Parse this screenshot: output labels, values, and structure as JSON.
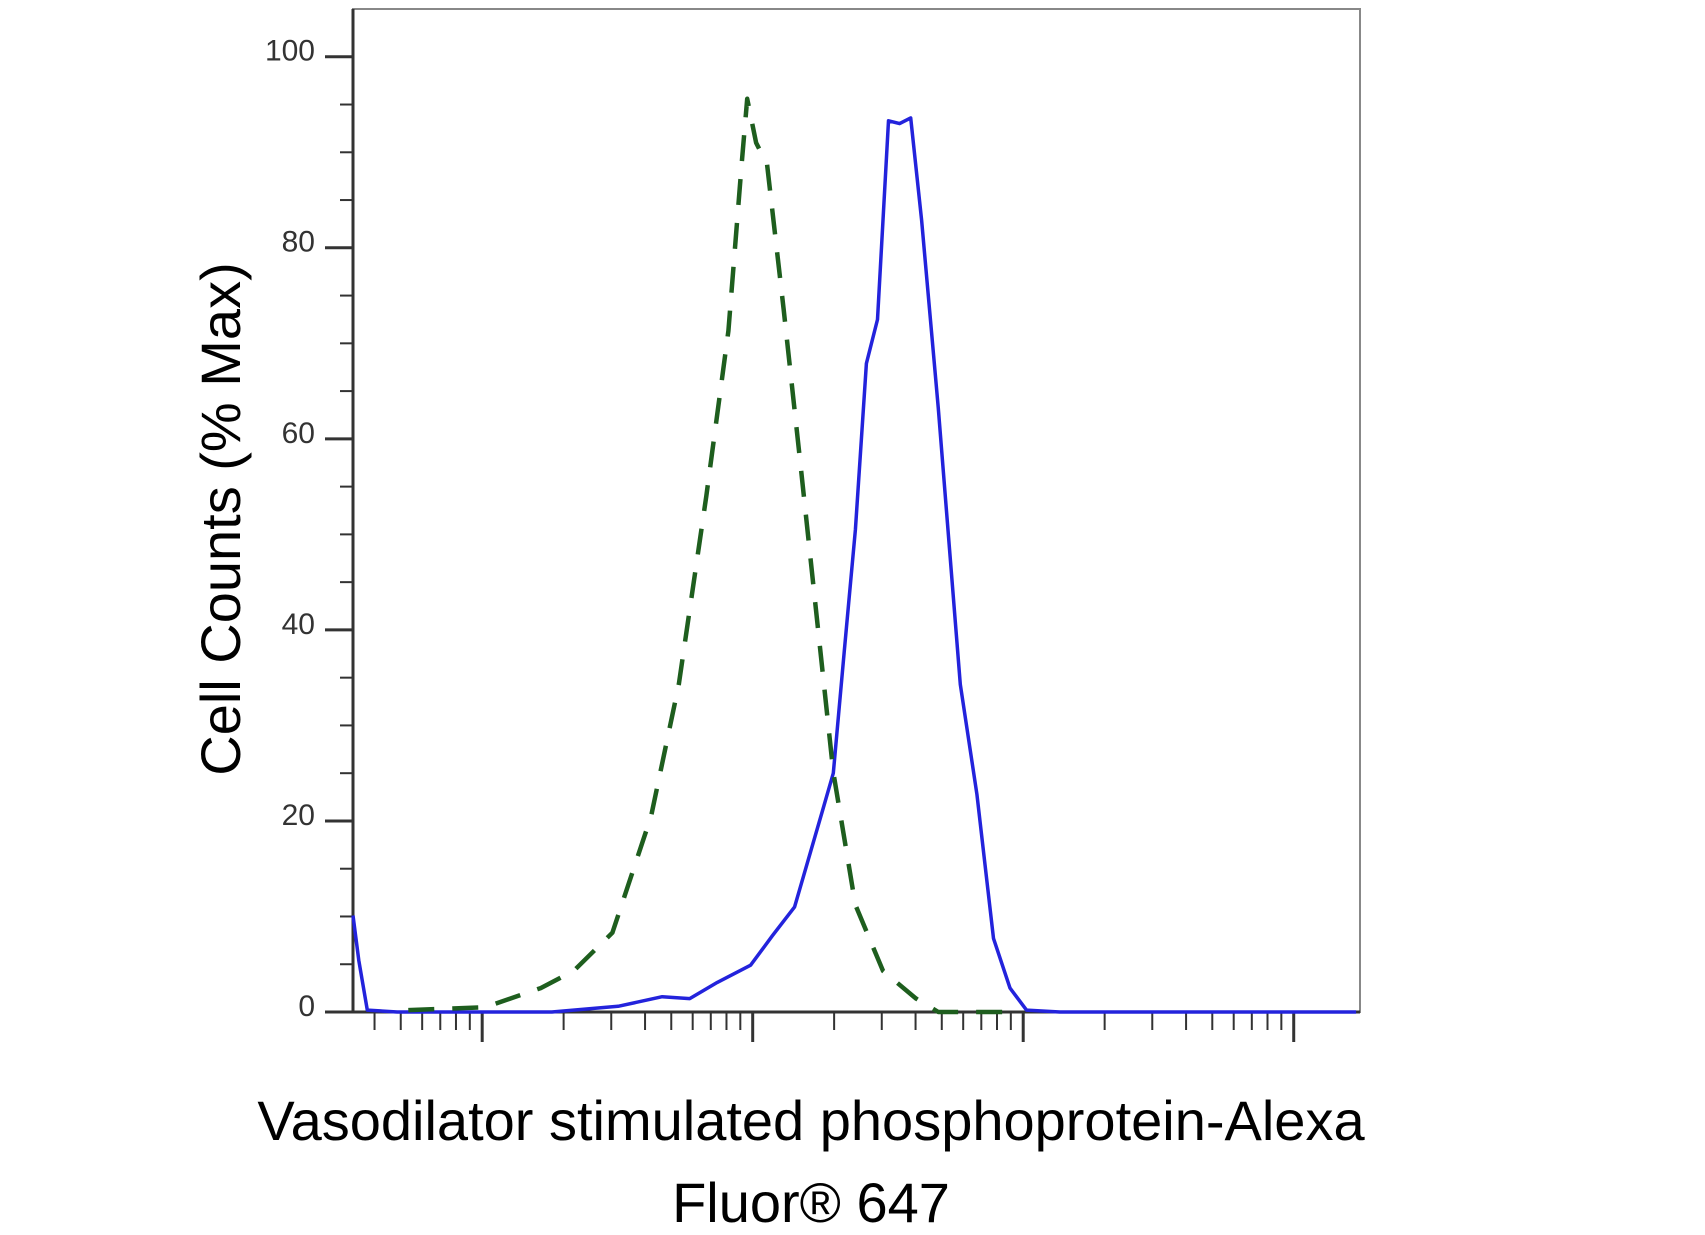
{
  "chart_data": {
    "type": "line",
    "ylabel": "Cell Counts (% Max)",
    "xlabel": [
      "Vasodilator stimulated phosphoprotein-Alexa",
      "Fluor® 647"
    ],
    "xscale": "log",
    "xlim": [
      33.3,
      175800
    ],
    "xticks": [
      100,
      1000,
      10000,
      100000
    ],
    "xminorticks": [
      40,
      50,
      60,
      70,
      80,
      90,
      200,
      300,
      400,
      500,
      600,
      700,
      800,
      900,
      2000,
      3000,
      4000,
      5000,
      6000,
      7000,
      8000,
      9000,
      20000,
      30000,
      40000,
      50000,
      60000,
      70000,
      80000,
      90000
    ],
    "ylim": [
      0,
      105
    ],
    "yticks": [
      0,
      20,
      40,
      60,
      80,
      100
    ],
    "yminorticks": [
      5,
      10,
      15,
      25,
      30,
      35,
      45,
      50,
      55,
      65,
      70,
      75,
      85,
      90,
      95
    ],
    "series": [
      {
        "color": "#2323dc",
        "style": "solid",
        "x": [
          33.3,
          35,
          37.6,
          48.5,
          181,
          318,
          463,
          585,
          740,
          982,
          1184,
          1429,
          1645,
          1808,
          1986,
          2181,
          2397,
          2632,
          2893,
          3177,
          3491,
          3837,
          4210,
          4853,
          5852,
          6745,
          7763,
          8936,
          10280,
          13650,
          170000
        ],
        "values": [
          10.1,
          5.4,
          0.2,
          0,
          0,
          0.6,
          1.6,
          1.4,
          3.1,
          4.9,
          8.0,
          11.0,
          17.0,
          21.0,
          25.0,
          37.8,
          50.5,
          67.9,
          72.5,
          93.3,
          93.0,
          93.6,
          82.9,
          63.2,
          34.3,
          22.8,
          7.7,
          2.5,
          0.2,
          0,
          0
        ]
      },
      {
        "color": "#1e5e1e",
        "style": "dashed",
        "x": [
          53.3,
          102.8,
          164.5,
          218,
          303,
          421,
          533,
          674,
          813,
          910,
          954,
          1029,
          1130,
          1301,
          1499,
          1725,
          1986,
          2397,
          3033,
          4018,
          4853,
          9354
        ],
        "values": [
          0.2,
          0.5,
          2.5,
          4.3,
          8.3,
          20.5,
          34.3,
          54,
          71.3,
          88.7,
          95.6,
          91,
          88.7,
          73.6,
          57.5,
          41.3,
          25.1,
          11.2,
          4.3,
          1.4,
          0,
          0
        ]
      }
    ]
  }
}
